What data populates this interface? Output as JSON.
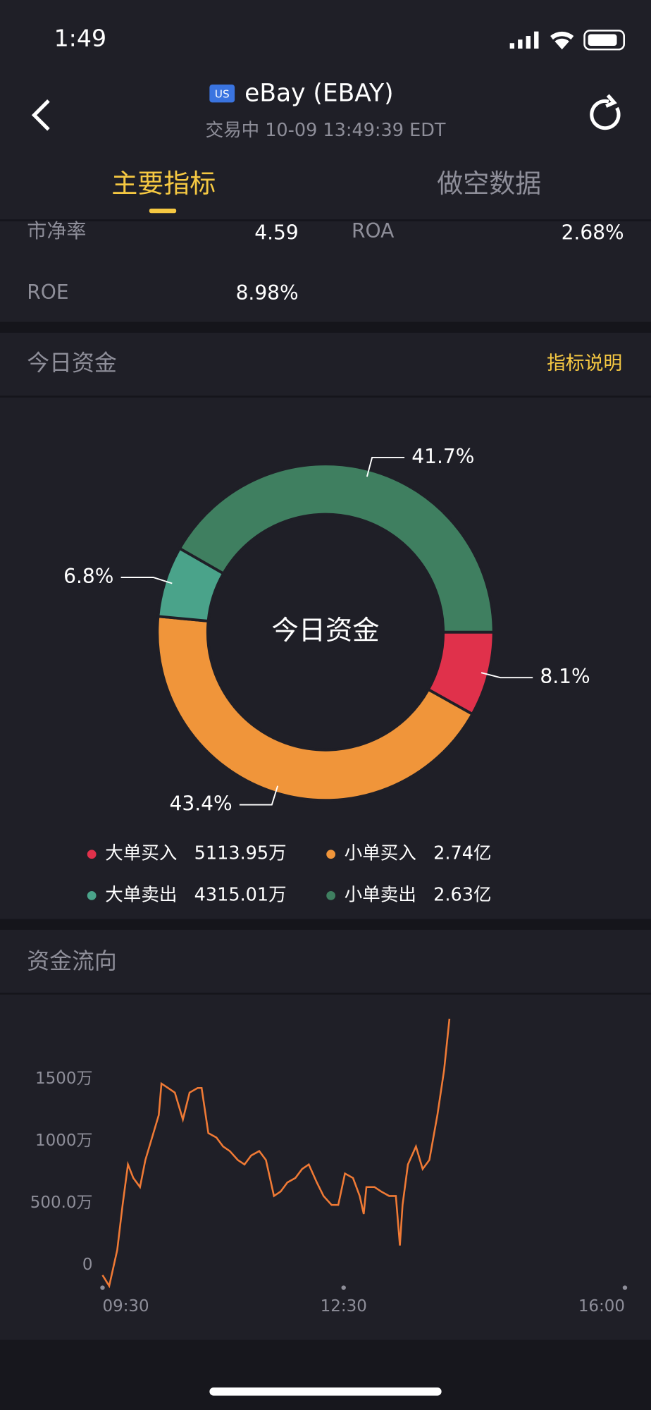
{
  "status": {
    "time": "1:49"
  },
  "header": {
    "badge": "US",
    "title": "eBay (EBAY)",
    "subtitle": "交易中 10-09 13:49:39 EDT"
  },
  "tabs": [
    "主要指标",
    "做空数据"
  ],
  "metrics": [
    {
      "label": "市净率",
      "value": "4.59"
    },
    {
      "label": "ROA",
      "value": "2.68%"
    },
    {
      "label": "ROE",
      "value": "8.98%"
    }
  ],
  "sections": {
    "funds": "今日资金",
    "funds_link": "指标说明",
    "flow": "资金流向"
  },
  "chart_data": [
    {
      "type": "donut",
      "center_label": "今日资金",
      "categories": [
        "大单买入",
        "小单买入",
        "大单卖出",
        "小单卖出"
      ],
      "amounts": [
        "5113.95万",
        "2.74亿",
        "4315.01万",
        "2.63亿"
      ],
      "values": [
        8.1,
        43.4,
        6.8,
        41.7
      ],
      "value_labels": [
        "8.1%",
        "43.4%",
        "6.8%",
        "41.7%"
      ],
      "colors": [
        "#e0314b",
        "#f0953a",
        "#4aa38a",
        "#3f7f60"
      ]
    },
    {
      "type": "line",
      "color": "#f07a35",
      "x": [
        0,
        5,
        11,
        15,
        19,
        23,
        28,
        32,
        38,
        42,
        44,
        49,
        54,
        60,
        65,
        71,
        74,
        79,
        85,
        90,
        95,
        101,
        106,
        111,
        117,
        122,
        128,
        133,
        138,
        144,
        149,
        154,
        160,
        165,
        171,
        176,
        181,
        187,
        192,
        195,
        197,
        203,
        208,
        214,
        219,
        222,
        224,
        228,
        234,
        239,
        244,
        250,
        255,
        259
      ],
      "values": [
        -80,
        -167,
        123,
        486,
        812,
        703,
        630,
        848,
        1065,
        1210,
        1464,
        1428,
        1391,
        1174,
        1391,
        1428,
        1428,
        1065,
        1029,
        957,
        920,
        848,
        812,
        884,
        920,
        848,
        558,
        594,
        667,
        703,
        775,
        812,
        667,
        558,
        486,
        486,
        739,
        703,
        558,
        413,
        630,
        630,
        594,
        558,
        558,
        159,
        486,
        812,
        957,
        775,
        848,
        1210,
        1572,
        1986
      ],
      "xlim": [
        0,
        390
      ],
      "xticks": [
        {
          "value": 0,
          "label": "09:30"
        },
        {
          "value": 180,
          "label": "12:30"
        },
        {
          "value": 390,
          "label": "16:00"
        }
      ],
      "ylim": [
        -200,
        2000
      ],
      "yticks": [
        0,
        {
          "value": 500,
          "label": "500.0万"
        },
        {
          "value": 1000,
          "label": "1000万"
        },
        {
          "value": 1500,
          "label": "1500万"
        }
      ]
    }
  ]
}
